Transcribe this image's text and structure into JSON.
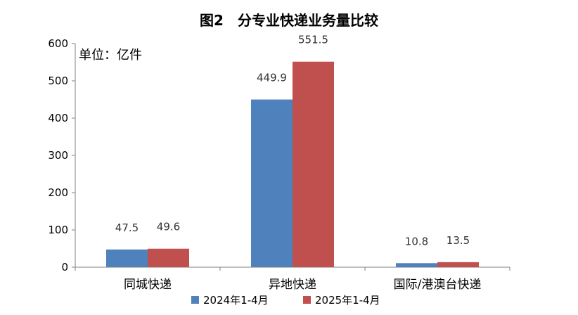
{
  "chart_data": {
    "type": "bar",
    "title": "图2　分专业快递业务量比较",
    "unit_label": "单位：亿件",
    "categories": [
      "同城快递",
      "异地快递",
      "国际/港澳台快递"
    ],
    "series": [
      {
        "name": "2024年1-4月",
        "color": "#4f81bd",
        "values": [
          47.5,
          449.9,
          10.8
        ]
      },
      {
        "name": "2025年1-4月",
        "color": "#c0504d",
        "values": [
          49.6,
          551.5,
          13.5
        ]
      }
    ],
    "ylim": [
      0,
      600
    ],
    "yticks": [
      0,
      100,
      200,
      300,
      400,
      500,
      600
    ],
    "grid": false,
    "legend_position": "bottom"
  }
}
